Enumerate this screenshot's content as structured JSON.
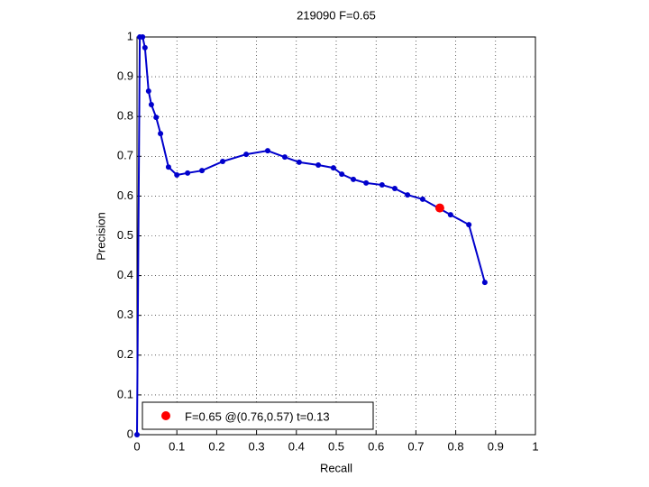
{
  "chart_data": {
    "type": "line",
    "title": "219090 F=0.65",
    "x_label": "Recall",
    "y_label": "Precision",
    "series": [
      {
        "color": "#0000cc",
        "x": [
          0,
          0.007,
          0.014,
          0.02,
          0.029,
          0.036,
          0.048,
          0.059,
          0.079,
          0.1,
          0.127,
          0.163,
          0.215,
          0.274,
          0.328,
          0.371,
          0.407,
          0.455,
          0.493,
          0.514,
          0.543,
          0.575,
          0.615,
          0.647,
          0.679,
          0.717,
          0.787,
          0.833,
          0.873
        ],
        "values": [
          0,
          1,
          1,
          0.973,
          0.864,
          0.83,
          0.798,
          0.757,
          0.673,
          0.653,
          0.658,
          0.664,
          0.687,
          0.705,
          0.714,
          0.698,
          0.685,
          0.678,
          0.671,
          0.655,
          0.642,
          0.633,
          0.628,
          0.619,
          0.603,
          0.592,
          0.553,
          0.528,
          0.383
        ]
      },
      {
        "name": "F=0.65 @(0.76,0.57) t=0.13",
        "color": "#ff0000",
        "x": [
          0.76
        ],
        "values": [
          0.57
        ]
      }
    ],
    "xlim": [
      0,
      1
    ],
    "ylim": [
      0,
      1
    ],
    "xticks": [
      0,
      0.1,
      0.2,
      0.3,
      0.4,
      0.5,
      0.6,
      0.7,
      0.8,
      0.9,
      1
    ],
    "yticks": [
      0,
      0.1,
      0.2,
      0.3,
      0.4,
      0.5,
      0.6,
      0.7,
      0.8,
      0.9,
      1
    ],
    "grid": true,
    "legend": "lower left"
  }
}
